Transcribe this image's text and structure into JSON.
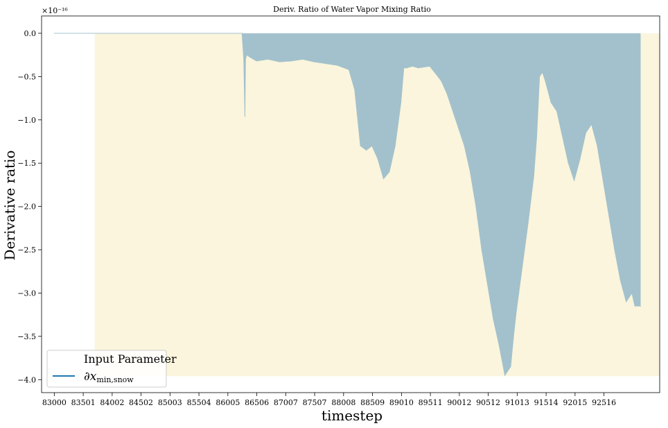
{
  "chart_data": {
    "type": "area",
    "title": "Deriv. Ratio of Water Vapor Mixing Ratio",
    "xlabel": "timestep",
    "ylabel": "Derivative ratio",
    "y_offset_label": "×10⁻¹⁶",
    "y_scale_exponent": -16,
    "xlim": [
      82780,
      93480
    ],
    "ylim": [
      -4.15,
      0.2
    ],
    "x_ticks": [
      83000,
      83501,
      84002,
      84502,
      85003,
      85504,
      86005,
      86506,
      87007,
      87507,
      88008,
      88509,
      89010,
      89511,
      90012,
      90512,
      91013,
      91514,
      92015,
      92516
    ],
    "x_tick_labels": [
      "83000",
      "83501",
      "84002",
      "84502",
      "85003",
      "85504",
      "86005",
      "86506",
      "87007",
      "87507",
      "88008",
      "88509",
      "89010",
      "89511",
      "90012",
      "90512",
      "91013",
      "91514",
      "92015",
      "92516"
    ],
    "y_ticks": [
      0.0,
      -0.5,
      -1.0,
      -1.5,
      -2.0,
      -2.5,
      -3.0,
      -3.5,
      -4.0
    ],
    "y_tick_labels": [
      "0.0",
      "−0.5",
      "−1.0",
      "−1.5",
      "−2.0",
      "−2.5",
      "−3.0",
      "−3.5",
      "−4.0"
    ],
    "background_band": {
      "x_start": 83700,
      "x_end": 93480,
      "y_bottom": -3.96,
      "y_top": 0.0,
      "color": "#faf5dc"
    },
    "series": [
      {
        "name": "∂x_min,snow",
        "color": "#1f77b4",
        "fill_color": "#a3c1cc",
        "x": [
          83000,
          86100,
          86250,
          86280,
          86300,
          86310,
          86330,
          86400,
          86500,
          86700,
          86900,
          87100,
          87300,
          87500,
          87700,
          87900,
          88100,
          88200,
          88300,
          88400,
          88500,
          88600,
          88700,
          88800,
          88900,
          89000,
          89050,
          89100,
          89200,
          89300,
          89500,
          89700,
          89800,
          89900,
          90000,
          90100,
          90200,
          90300,
          90400,
          90500,
          90600,
          90700,
          90800,
          90900,
          90950,
          91000,
          91100,
          91200,
          91300,
          91350,
          91400,
          91450,
          91500,
          91600,
          91700,
          91800,
          91900,
          92000,
          92100,
          92200,
          92300,
          92400,
          92500,
          92600,
          92700,
          92800,
          92900,
          93000,
          93050,
          93150
        ],
        "y": [
          0.0,
          0.0,
          0.0,
          -0.3,
          -0.96,
          -0.3,
          -0.25,
          -0.28,
          -0.32,
          -0.3,
          -0.33,
          -0.32,
          -0.3,
          -0.33,
          -0.35,
          -0.37,
          -0.42,
          -0.65,
          -1.3,
          -1.35,
          -1.3,
          -1.45,
          -1.68,
          -1.6,
          -1.3,
          -0.8,
          -0.4,
          -0.4,
          -0.38,
          -0.4,
          -0.38,
          -0.55,
          -0.7,
          -0.9,
          -1.1,
          -1.3,
          -1.6,
          -2.0,
          -2.5,
          -2.9,
          -3.3,
          -3.6,
          -3.95,
          -3.85,
          -3.5,
          -3.2,
          -2.7,
          -2.2,
          -1.65,
          -1.2,
          -0.5,
          -0.45,
          -0.55,
          -0.8,
          -0.9,
          -1.2,
          -1.5,
          -1.7,
          -1.45,
          -1.15,
          -1.05,
          -1.3,
          -1.7,
          -2.1,
          -2.5,
          -2.85,
          -3.1,
          -3.0,
          -3.15,
          -3.15
        ]
      }
    ],
    "legend": {
      "title": "Input Parameter",
      "entries": [
        "∂x_min,snow"
      ],
      "location": "lower-left"
    },
    "grid": false
  }
}
